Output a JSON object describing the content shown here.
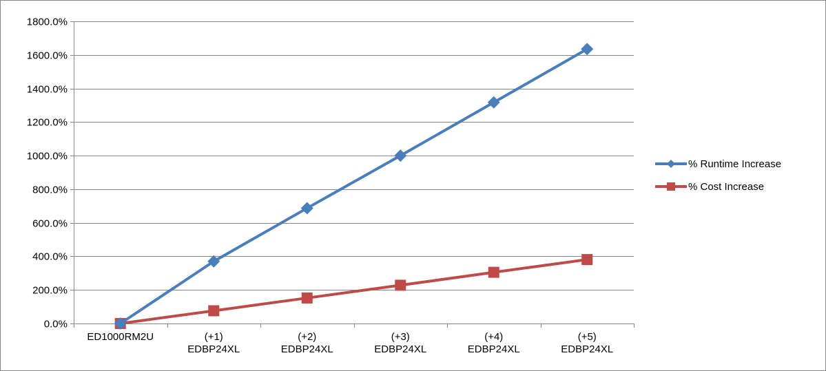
{
  "chart_data": {
    "type": "line",
    "categories": [
      [
        "ED1000RM2U"
      ],
      [
        "(+1)",
        "EDBP24XL"
      ],
      [
        "(+2)",
        "EDBP24XL"
      ],
      [
        "(+3)",
        "EDBP24XL"
      ],
      [
        "(+4)",
        "EDBP24XL"
      ],
      [
        "(+5)",
        "EDBP24XL"
      ]
    ],
    "series": [
      {
        "name": "% Runtime Increase",
        "color": "#4a7ebb",
        "marker": "diamond",
        "values": [
          0,
          370,
          687,
          1000,
          1317,
          1635
        ]
      },
      {
        "name": "% Cost Increase",
        "color": "#be4b48",
        "marker": "square",
        "values": [
          0,
          76,
          152,
          228,
          305,
          381
        ]
      }
    ],
    "ylim": [
      0,
      1800
    ],
    "yticks": [
      0,
      200,
      400,
      600,
      800,
      1000,
      1200,
      1400,
      1600,
      1800
    ],
    "ytick_labels": [
      "0.0%",
      "200.0%",
      "400.0%",
      "600.0%",
      "800.0%",
      "1000.0%",
      "1200.0%",
      "1400.0%",
      "1600.0%",
      "1800.0%"
    ],
    "grid": true,
    "legend_position": "right",
    "title": "",
    "xlabel": "",
    "ylabel": ""
  }
}
